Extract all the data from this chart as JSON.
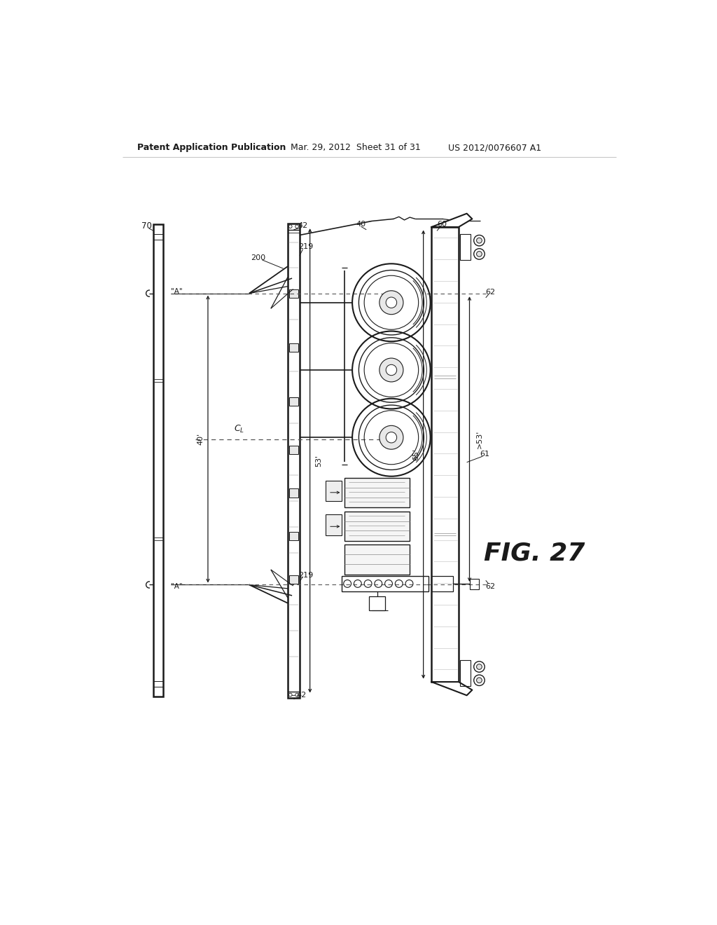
{
  "bg_color": "#ffffff",
  "header_left": "Patent Application Publication",
  "header_mid": "Mar. 29, 2012  Sheet 31 of 31",
  "header_right": "US 2012/0076607 A1",
  "fig_label": "FIG. 27",
  "lc": "#1a1a1a",
  "dc": "#555555",
  "gc": "#888888"
}
